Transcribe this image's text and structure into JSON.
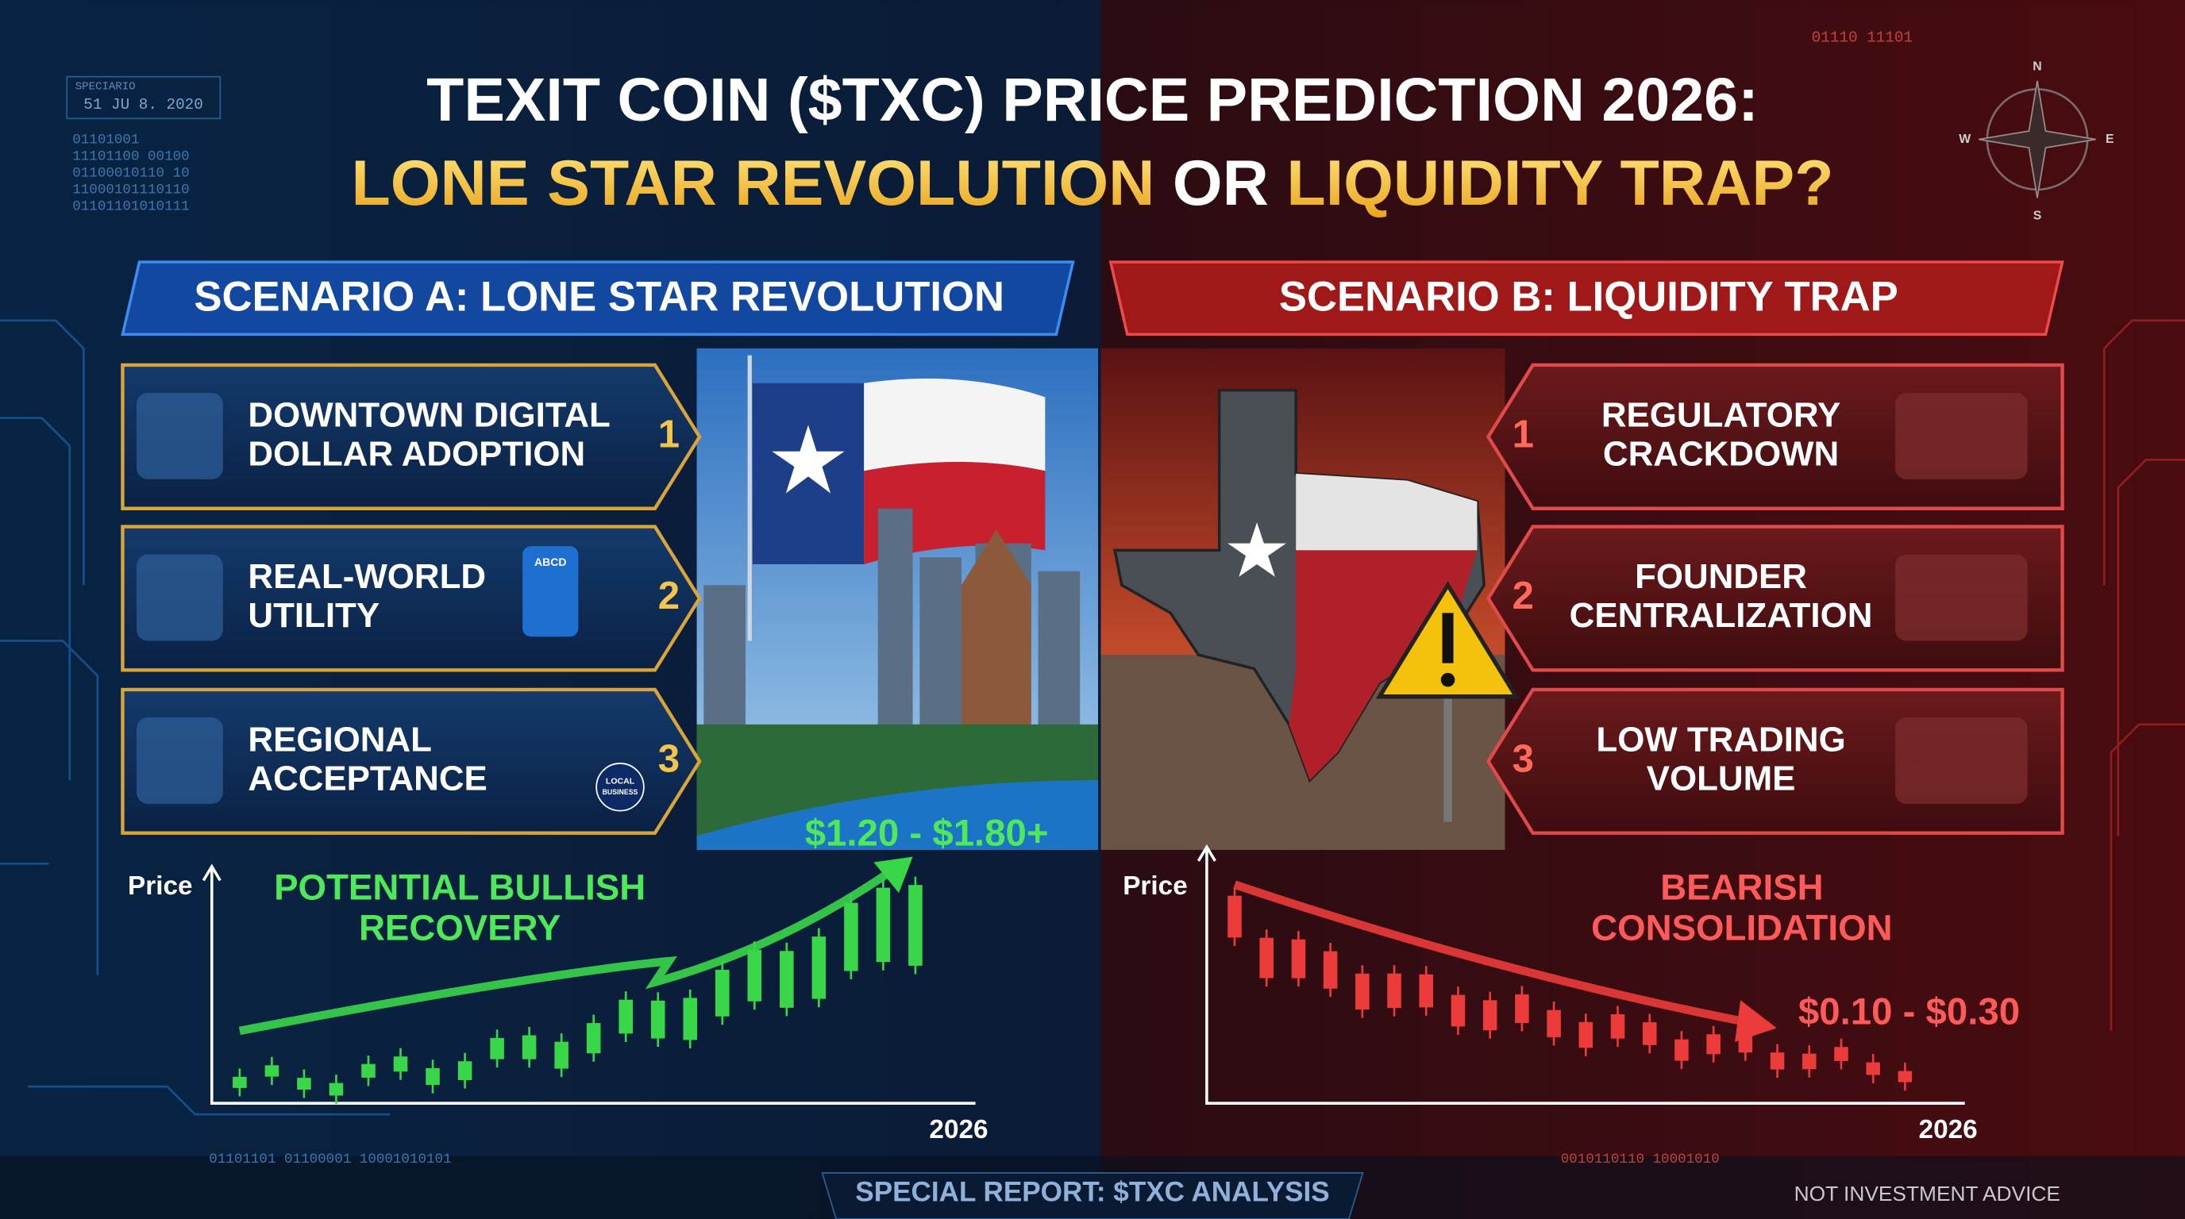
{
  "header": {
    "title_line1": "TEXIT COIN ($TXC) PRICE PREDICTION 2026:",
    "title_line2": [
      "LONE STAR REVOLUTION",
      "OR",
      "LIQUIDITY TRAP?"
    ]
  },
  "corner_left": {
    "label": "SPECIARIO",
    "date": "51 JU 8. 2020",
    "code": [
      "01101001",
      "11101100 00100",
      "01100010110 10",
      "11000101110110",
      "01101101010111"
    ]
  },
  "corner_right": {
    "code": "01110 11101"
  },
  "compass": {
    "n": "N",
    "e": "E",
    "s": "S",
    "w": "W"
  },
  "scenario_a": {
    "heading": "SCENARIO A: LONE STAR REVOLUTION",
    "items": [
      {
        "lines": [
          "DOWNTOWN DIGITAL",
          "DOLLAR ADOPTION"
        ],
        "number": "1"
      },
      {
        "lines": [
          "REAL-WORLD",
          "UTILITY"
        ],
        "number": "2"
      },
      {
        "lines": [
          "REGIONAL",
          "ACCEPTANCE"
        ],
        "number": "3"
      }
    ],
    "icon_texts": {
      "payment": "ABCD",
      "local": [
        "LOCAL",
        "BUSINESS"
      ]
    },
    "chart": {
      "y_label": "Price",
      "x_label": "2026",
      "annotation": [
        "POTENTIAL BULLISH",
        "RECOVERY"
      ],
      "target": "$1.20 - $1.80+"
    }
  },
  "scenario_b": {
    "heading": "SCENARIO B: LIQUIDITY TRAP",
    "items": [
      {
        "lines": [
          "REGULATORY",
          "CRACKDOWN"
        ],
        "number": "1"
      },
      {
        "lines": [
          "FOUNDER",
          "CENTRALIZATION"
        ],
        "number": "2"
      },
      {
        "lines": [
          "LOW TRADING",
          "VOLUME"
        ],
        "number": "3"
      }
    ],
    "chart": {
      "y_label": "Price",
      "x_label": "2026",
      "annotation": [
        "BEARISH",
        "CONSOLIDATION"
      ],
      "target": "$0.10 - $0.30"
    }
  },
  "footer": {
    "code_left": "01101101 01100001 10001010101",
    "code_right": "0010110110    10001010",
    "center": "SPECIAL REPORT: $TXC ANALYSIS",
    "right": "NOT INVESTMENT ADVICE"
  }
}
